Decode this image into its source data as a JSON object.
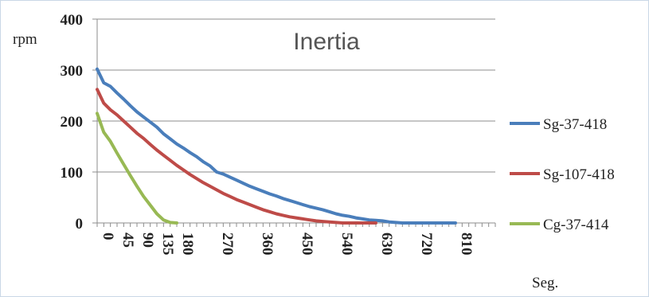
{
  "chart_data": {
    "type": "line",
    "title": "Inertia",
    "ylabel": "rpm",
    "xlabel": "Seg.",
    "ylim": [
      0,
      400
    ],
    "yticks": [
      0,
      100,
      200,
      300,
      400
    ],
    "xlim": [
      0,
      900
    ],
    "xticks": [
      0,
      45,
      90,
      135,
      180,
      270,
      360,
      450,
      540,
      630,
      720,
      810
    ],
    "grid": true,
    "legend_position": "right",
    "series": [
      {
        "name": "Sg-37-418",
        "color": "#4a7ebb",
        "x": [
          0,
          15,
          30,
          45,
          60,
          75,
          90,
          105,
          120,
          135,
          150,
          165,
          180,
          195,
          210,
          225,
          240,
          255,
          270,
          285,
          300,
          315,
          330,
          345,
          360,
          375,
          390,
          405,
          420,
          435,
          450,
          465,
          480,
          495,
          510,
          525,
          540,
          555,
          570,
          585,
          600,
          615,
          630,
          645,
          660,
          675,
          690,
          705,
          720,
          735,
          750,
          765,
          780,
          795,
          810
        ],
        "values": [
          302,
          275,
          268,
          255,
          243,
          230,
          218,
          208,
          198,
          188,
          175,
          165,
          155,
          147,
          138,
          130,
          120,
          112,
          100,
          96,
          90,
          84,
          78,
          72,
          67,
          62,
          57,
          53,
          48,
          44,
          40,
          36,
          32,
          29,
          26,
          22,
          18,
          15,
          13,
          10,
          8,
          6,
          5,
          4,
          2,
          1,
          0,
          0,
          0,
          0,
          0,
          0,
          0,
          0,
          0
        ]
      },
      {
        "name": "Sg-107-418",
        "color": "#be4b48",
        "x": [
          0,
          15,
          30,
          45,
          60,
          75,
          90,
          105,
          120,
          135,
          150,
          165,
          180,
          195,
          210,
          225,
          240,
          255,
          270,
          285,
          300,
          315,
          330,
          345,
          360,
          375,
          390,
          405,
          420,
          435,
          450,
          465,
          480,
          495,
          510,
          525,
          540,
          555,
          570,
          585,
          600,
          615,
          630
        ],
        "values": [
          262,
          235,
          222,
          212,
          200,
          188,
          176,
          166,
          154,
          143,
          133,
          123,
          113,
          104,
          95,
          87,
          79,
          72,
          65,
          58,
          52,
          46,
          41,
          36,
          31,
          26,
          22,
          18,
          15,
          12,
          10,
          8,
          6,
          4,
          3,
          2,
          1,
          0,
          0,
          0,
          0,
          0,
          0
        ]
      },
      {
        "name": "Cg-37-414",
        "color": "#98b954",
        "x": [
          0,
          15,
          30,
          45,
          60,
          75,
          90,
          105,
          120,
          135,
          150,
          165,
          180
        ],
        "values": [
          215,
          178,
          160,
          137,
          115,
          93,
          72,
          52,
          35,
          18,
          6,
          1,
          0
        ]
      }
    ]
  }
}
